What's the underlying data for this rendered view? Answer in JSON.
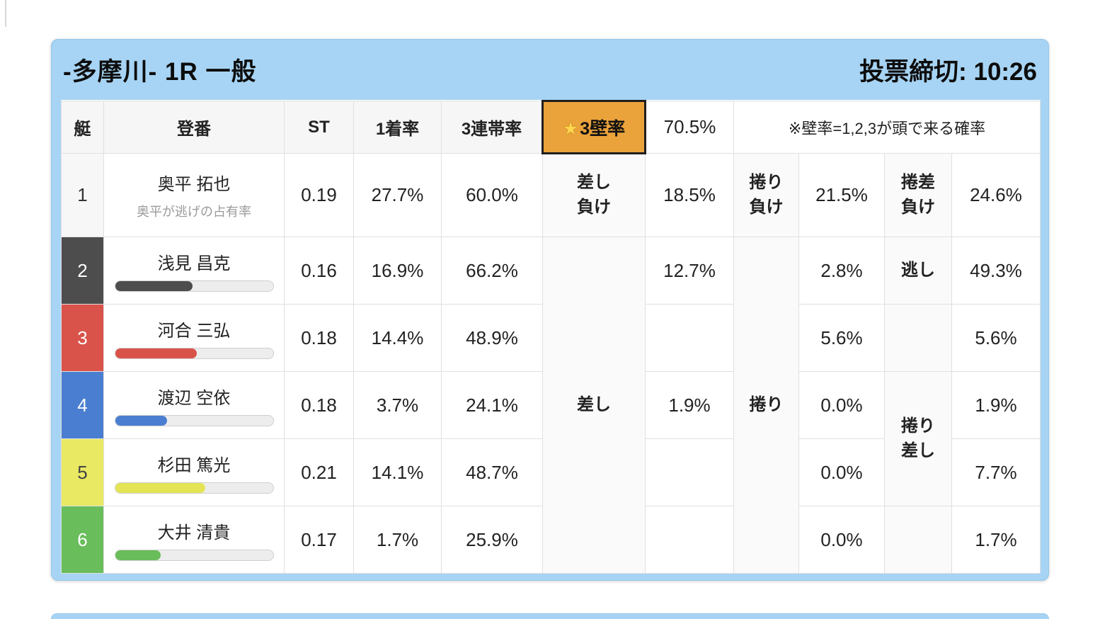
{
  "header": {
    "title": "-多摩川- 1R 一般",
    "deadline_label": "投票締切: 10:26"
  },
  "columns": {
    "boat": "艇",
    "reg_no": "登番",
    "st": "ST",
    "win_rate": "1着率",
    "top3_rate": "3連帯率",
    "wall_star": "★",
    "wall_rate": "3壁率",
    "wall_rate_value": "70.5%",
    "note": "※壁率=1,2,3が頭で来る確率"
  },
  "colors": {
    "card_blue": "#a7d4f4",
    "highlight_orange": "#eaa23b",
    "boat1": "#f7f7f7",
    "boat2": "#4d4d4d",
    "boat3": "#d9534b",
    "boat4": "#4a7ed0",
    "boat5": "#e9e964",
    "boat6": "#69bd5b"
  },
  "merged": {
    "sashi": "差し",
    "makuri": "捲り",
    "makuri_sashi_l1": "捲り",
    "makuri_sashi_l2": "差し"
  },
  "rows": [
    {
      "boat": "1",
      "name": "奥平 拓也",
      "subtitle": "奥平が逃げの占有率",
      "st": "0.19",
      "win": "27.7%",
      "top3": "60.0%",
      "l1a": "差し",
      "l1b": "負け",
      "v1": "18.5%",
      "l2a": "捲り",
      "l2b": "負け",
      "v2": "21.5%",
      "l3a": "捲差",
      "l3b": "負け",
      "v3": "24.6%"
    },
    {
      "boat": "2",
      "name": "浅見 昌克",
      "st": "0.16",
      "win": "16.9%",
      "top3": "66.2%",
      "v1": "12.7%",
      "v2": "2.8%",
      "l3": "逃し",
      "v3": "49.3%",
      "bar_pct": 49
    },
    {
      "boat": "3",
      "name": "河合 三弘",
      "st": "0.18",
      "win": "14.4%",
      "top3": "48.9%",
      "v1": "",
      "v2": "5.6%",
      "l3": "",
      "v3": "5.6%",
      "bar_pct": 52
    },
    {
      "boat": "4",
      "name": "渡辺 空依",
      "st": "0.18",
      "win": "3.7%",
      "top3": "24.1%",
      "v1": "1.9%",
      "v2": "0.0%",
      "v3": "1.9%",
      "bar_pct": 33
    },
    {
      "boat": "5",
      "name": "杉田 篤光",
      "st": "0.21",
      "win": "14.1%",
      "top3": "48.7%",
      "v1": "",
      "v2": "0.0%",
      "v3": "7.7%",
      "bar_pct": 57
    },
    {
      "boat": "6",
      "name": "大井 清貴",
      "st": "0.17",
      "win": "1.7%",
      "top3": "25.9%",
      "v1": "",
      "v2": "0.0%",
      "l3": "",
      "v3": "1.7%",
      "bar_pct": 29
    }
  ]
}
